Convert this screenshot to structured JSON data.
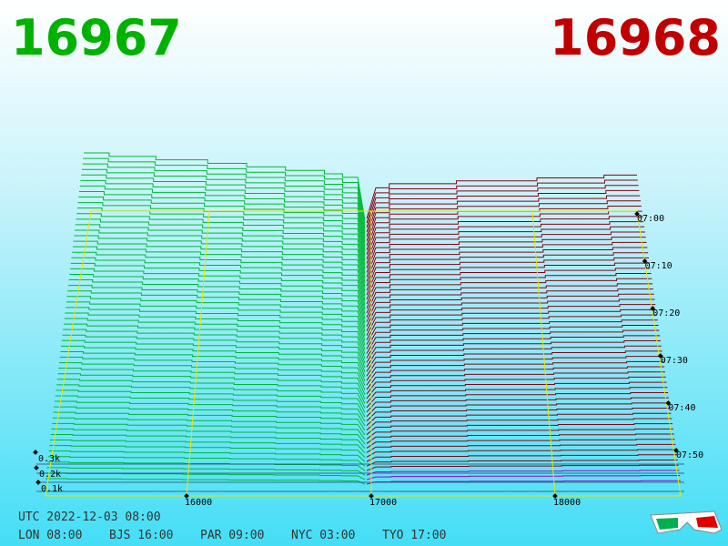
{
  "header": {
    "bid": "16967",
    "ask": "16968"
  },
  "depth_axis": {
    "labels": [
      "0.1k",
      "0.2k",
      "0.3k"
    ]
  },
  "price_axis": {
    "labels": [
      "16000",
      "17000",
      "18000"
    ]
  },
  "time_axis": {
    "labels": [
      "07:00",
      "07:10",
      "07:20",
      "07:30",
      "07:40",
      "07:50"
    ]
  },
  "footer": {
    "utc": "UTC 2022-12-03 08:00",
    "clocks": [
      "LON 08:00",
      "BJS 16:00",
      "PAR 09:00",
      "NYC 03:00",
      "TYO 17:00"
    ]
  }
}
